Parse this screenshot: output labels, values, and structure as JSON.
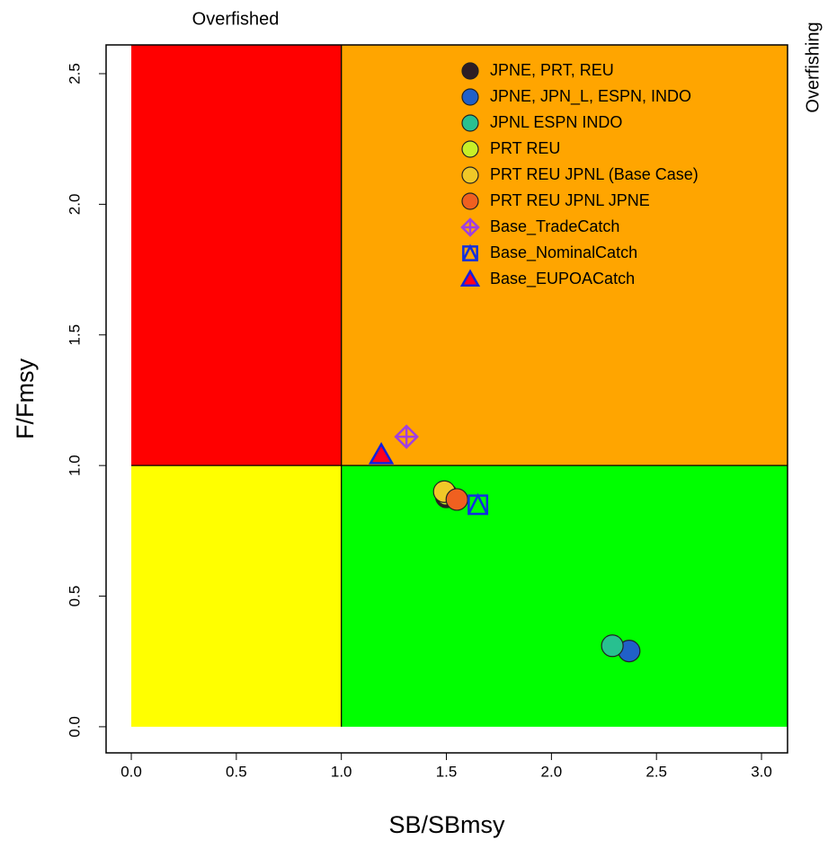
{
  "chart_data": {
    "type": "scatter",
    "annotations": {
      "top": "Overfished",
      "right": "Overfishing"
    },
    "xlabel": "SB/SBmsy",
    "ylabel": "F/Fmsy",
    "xlim": [
      -0.12,
      3.124
    ],
    "ylim": [
      -0.1,
      2.61
    ],
    "xticks": [
      {
        "value": 0,
        "label": "0.0"
      },
      {
        "value": 0.5,
        "label": "0.5"
      },
      {
        "value": 1,
        "label": "1.0"
      },
      {
        "value": 1.5,
        "label": "1.5"
      },
      {
        "value": 2,
        "label": "2.0"
      },
      {
        "value": 2.5,
        "label": "2.5"
      },
      {
        "value": 3,
        "label": "3.0"
      }
    ],
    "yticks": [
      {
        "value": 0,
        "label": "0.0"
      },
      {
        "value": 0.5,
        "label": "0.5"
      },
      {
        "value": 1,
        "label": "1.0"
      },
      {
        "value": 1.5,
        "label": "1.5"
      },
      {
        "value": 2,
        "label": "2.0"
      },
      {
        "value": 2.5,
        "label": "2.5"
      }
    ],
    "reference_x": 1,
    "reference_y": 1,
    "quadrant_colors": {
      "overfished_overfishing": "#ff0000",
      "healthy_overfishing": "#ffa500",
      "overfished_healthy": "#ffff00",
      "healthy": "#00ff00"
    },
    "legend": "top-right",
    "series": [
      {
        "name": "JPNE, PRT, REU",
        "color": "#2e1e24",
        "marker": "circle",
        "x": [
          1.5
        ],
        "values": [
          0.88
        ]
      },
      {
        "name": "JPNE, JPN_L, ESPN, INDO",
        "color": "#2060c8",
        "marker": "circle",
        "x": [
          2.37
        ],
        "values": [
          0.29
        ]
      },
      {
        "name": "JPNL ESPN INDO",
        "color": "#28c090",
        "marker": "circle",
        "x": [
          2.29
        ],
        "values": [
          0.31
        ]
      },
      {
        "name": "PRT REU",
        "color": "#c8f028",
        "marker": "circle",
        "x": [
          1.5
        ],
        "values": [
          0.89
        ]
      },
      {
        "name": "PRT REU JPNL (Base Case)",
        "color": "#f0c828",
        "marker": "circle",
        "x": [
          1.49
        ],
        "values": [
          0.9
        ]
      },
      {
        "name": "PRT REU JPNL JPNE",
        "color": "#f06020",
        "marker": "circle",
        "x": [
          1.55
        ],
        "values": [
          0.87
        ]
      },
      {
        "name": "Base_TradeCatch",
        "color": "#a040e0",
        "marker": "diamond-cross",
        "x": [
          1.31
        ],
        "values": [
          1.11
        ]
      },
      {
        "name": "Base_NominalCatch",
        "color": "#1030e0",
        "marker": "square-triangle",
        "x": [
          1.65
        ],
        "values": [
          0.85
        ]
      },
      {
        "name": "Base_EUPOACatch",
        "color": "#ff0020",
        "marker": "triangle",
        "x": [
          1.19
        ],
        "values": [
          1.04
        ]
      }
    ]
  }
}
